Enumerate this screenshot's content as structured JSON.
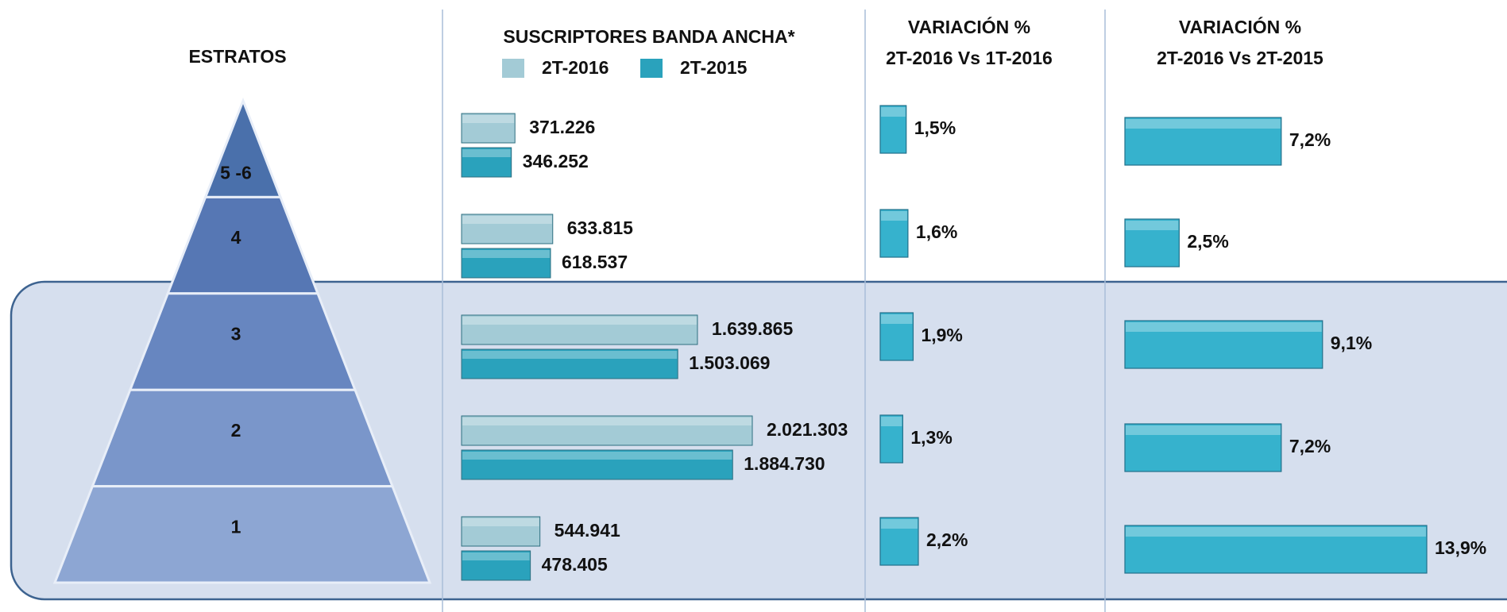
{
  "chart_data": [
    {
      "type": "pyramid",
      "title": "ESTRATOS",
      "categories": [
        "5 -6",
        "4",
        "3",
        "2",
        "1"
      ]
    },
    {
      "type": "hbar",
      "title": "SUSCRIPTORES BANDA ANCHA*",
      "series": [
        {
          "name": "2T-2016",
          "color": "#a3cbd6",
          "values": [
            371226,
            633815,
            1639865,
            2021303,
            544941
          ],
          "value_labels": [
            "371.226",
            "633.815",
            "1.639.865",
            "2.021.303",
            "544.941"
          ]
        },
        {
          "name": "2T-2015",
          "color": "#2aa2bc",
          "values": [
            346252,
            618537,
            1503069,
            1884730,
            478405
          ],
          "value_labels": [
            "346.252",
            "618.537",
            "1.503.069",
            "1.884.730",
            "478.405"
          ]
        }
      ]
    },
    {
      "type": "hbar",
      "title": "VARIACIÓN %",
      "subtitle": "2T-2016 Vs 1T-2016",
      "color": "#36b2cd",
      "values": [
        1.5,
        1.6,
        1.9,
        1.3,
        2.2
      ],
      "value_labels": [
        "1,5%",
        "1,6%",
        "1,9%",
        "1,3%",
        "2,2%"
      ]
    },
    {
      "type": "hbar",
      "title": "VARIACIÓN %",
      "subtitle": "2T-2016 Vs 2T-2015",
      "color": "#36b2cd",
      "values": [
        7.2,
        2.5,
        9.1,
        7.2,
        13.9
      ],
      "value_labels": [
        "7,2%",
        "2,5%",
        "9,1%",
        "7,2%",
        "13,9%"
      ]
    }
  ]
}
